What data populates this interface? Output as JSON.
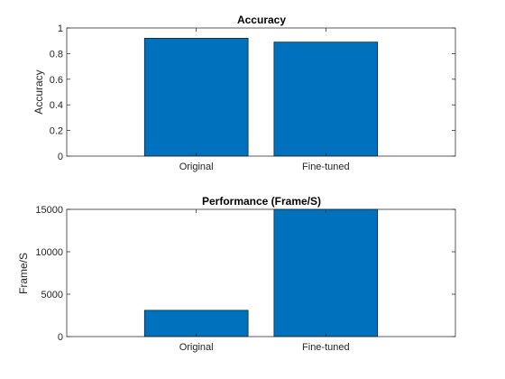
{
  "chart_data": [
    {
      "type": "bar",
      "title": "Accuracy",
      "xlabel": "",
      "ylabel": "Accuracy",
      "categories": [
        "Original",
        "Fine-tuned"
      ],
      "values": [
        0.92,
        0.89
      ],
      "ylim": [
        0,
        1
      ],
      "yticks": [
        "0",
        "0.2",
        "0.4",
        "0.6",
        "0.8",
        "1"
      ],
      "bar_color": "#0072BD",
      "grid": false
    },
    {
      "type": "bar",
      "title": "Performance (Frame/S)",
      "xlabel": "",
      "ylabel": "Frame/S",
      "categories": [
        "Original",
        "Fine-tuned"
      ],
      "values": [
        3100,
        15000
      ],
      "ylim": [
        0,
        15000
      ],
      "yticks": [
        "0",
        "5000",
        "10000",
        "15000"
      ],
      "bar_color": "#0072BD",
      "grid": false
    }
  ]
}
